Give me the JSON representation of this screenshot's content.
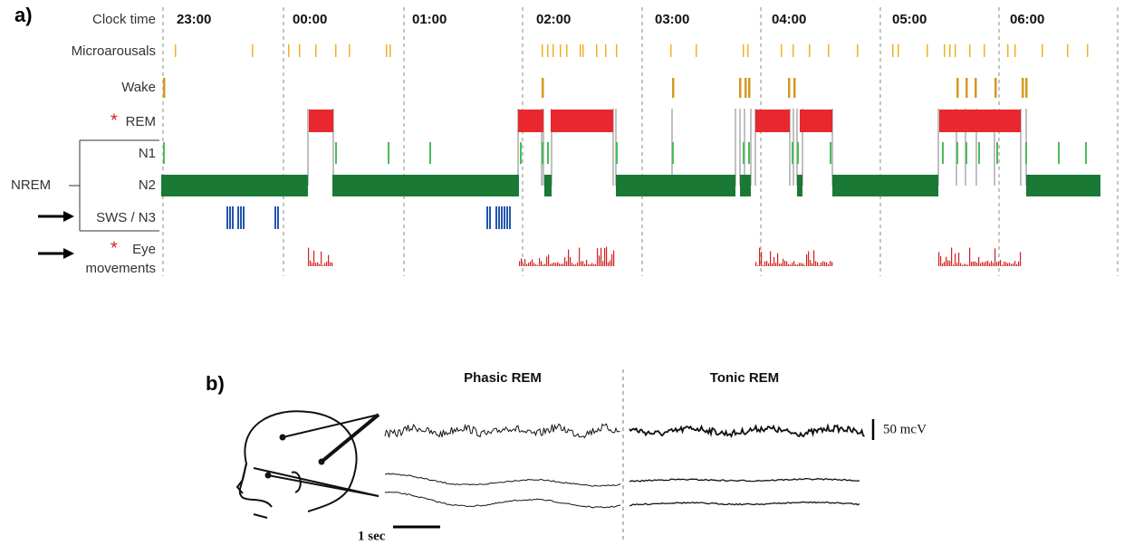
{
  "panel_a": {
    "label": "a)",
    "clock_label": "Clock time",
    "clock_times": [
      "23:00",
      "00:00",
      "01:00",
      "02:00",
      "03:00",
      "04:00",
      "05:00",
      "06:00"
    ],
    "rows": {
      "microarousals": "Microarousals",
      "wake": "Wake",
      "rem_marker": "*",
      "rem": "REM",
      "n1": "N1",
      "nrem": "NREM",
      "n2": "N2",
      "sws": "SWS / N3",
      "eye_marker": "*",
      "eye_line1": "Eye",
      "eye_line2": "movements"
    }
  },
  "panel_b": {
    "label": "b)",
    "phasic": "Phasic REM",
    "tonic": "Tonic REM",
    "amplitude_scale": "50 mcV",
    "time_scale": "1 sec"
  }
}
